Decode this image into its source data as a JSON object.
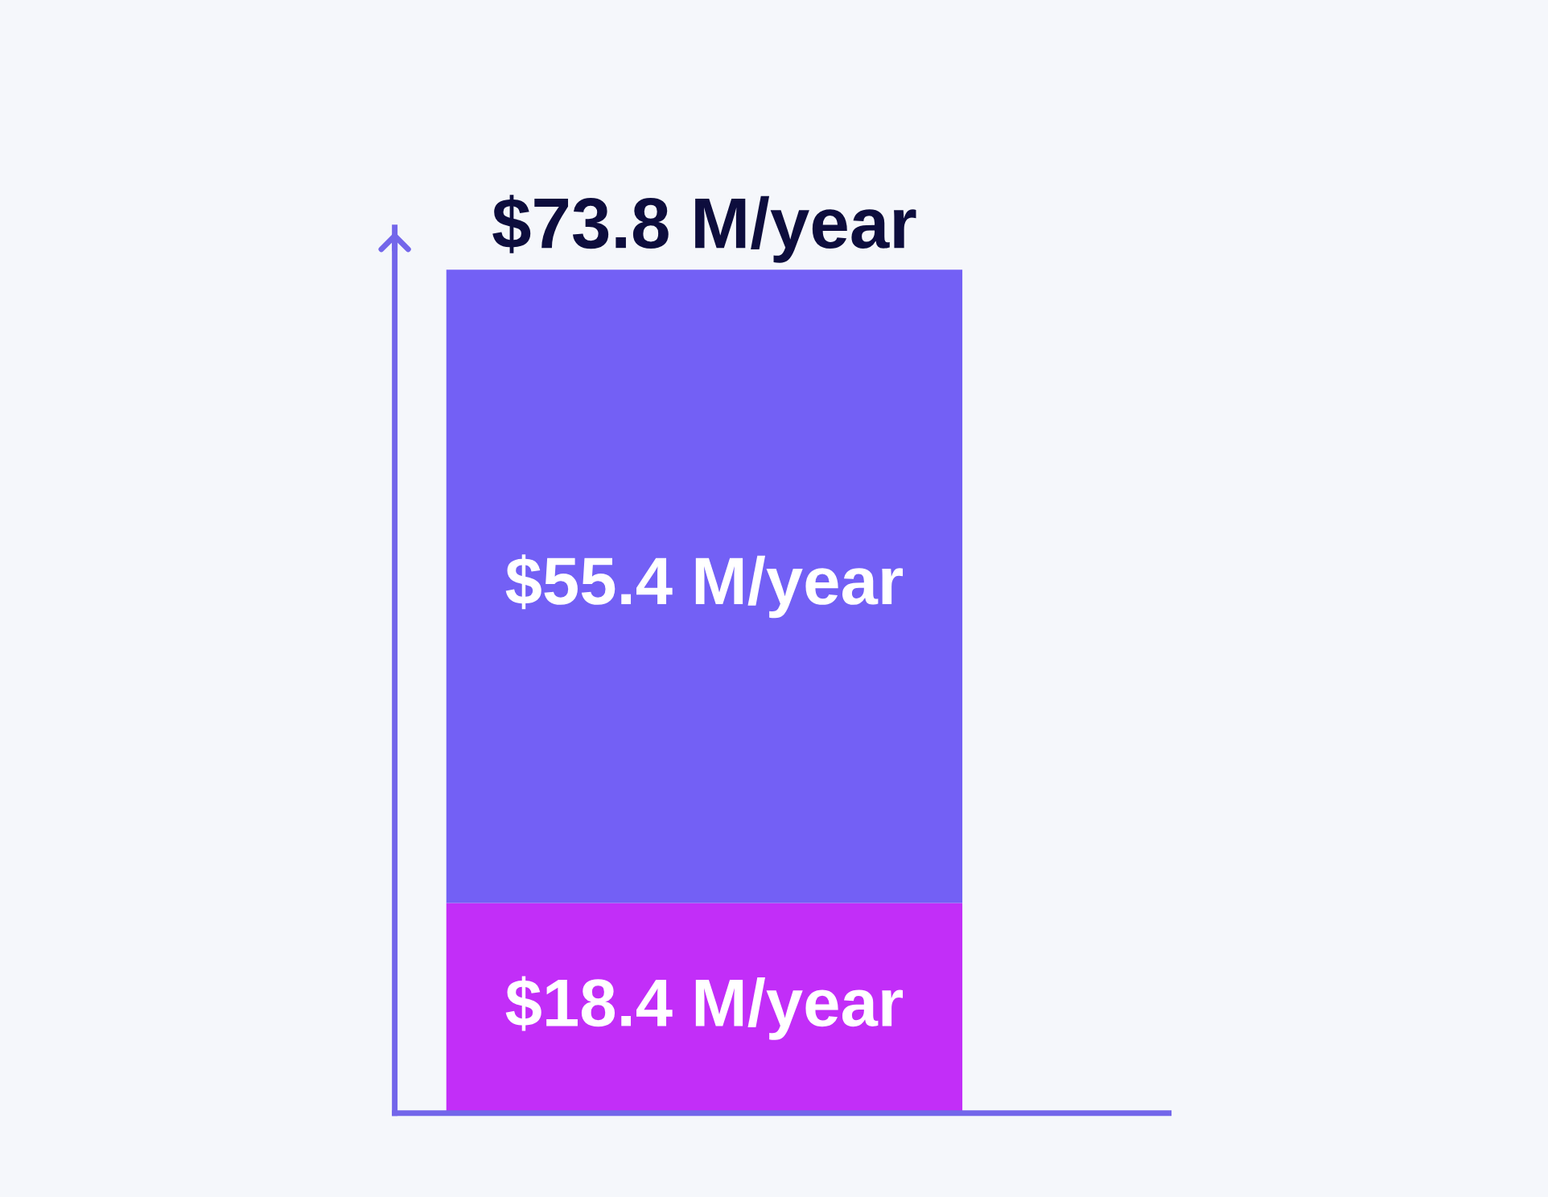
{
  "chart_data": {
    "type": "bar",
    "stacked": true,
    "categories": [
      null
    ],
    "series": [
      {
        "color": "#c22ef8",
        "values": [
          18.4
        ],
        "value_labels": [
          "$18.4 M/year"
        ]
      },
      {
        "color": "#7360f5",
        "values": [
          55.4
        ],
        "value_labels": [
          "$55.4 M/year"
        ]
      }
    ],
    "totals": [
      "$73.8 M/year"
    ],
    "tick_labels": false,
    "grid": false,
    "legend": false
  }
}
